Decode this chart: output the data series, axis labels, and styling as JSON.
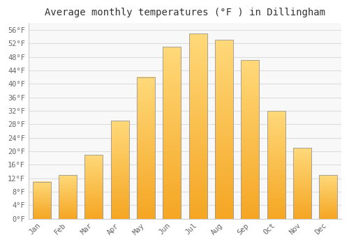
{
  "title": "Average monthly temperatures (°F ) in Dillingham",
  "months": [
    "Jan",
    "Feb",
    "Mar",
    "Apr",
    "May",
    "Jun",
    "Jul",
    "Aug",
    "Sep",
    "Oct",
    "Nov",
    "Dec"
  ],
  "values": [
    11,
    13,
    19,
    29,
    42,
    51,
    55,
    53,
    47,
    32,
    21,
    13
  ],
  "bar_color_bottom": "#F5A623",
  "bar_color_top": "#FFD97A",
  "bar_edge_color": "#999999",
  "ylim": [
    0,
    58
  ],
  "yticks": [
    0,
    4,
    8,
    12,
    16,
    20,
    24,
    28,
    32,
    36,
    40,
    44,
    48,
    52,
    56
  ],
  "ytick_labels": [
    "0°F",
    "4°F",
    "8°F",
    "12°F",
    "16°F",
    "20°F",
    "24°F",
    "28°F",
    "32°F",
    "36°F",
    "40°F",
    "44°F",
    "48°F",
    "52°F",
    "56°F"
  ],
  "background_color": "#ffffff",
  "plot_bg_color": "#f8f8f8",
  "grid_color": "#dddddd",
  "title_fontsize": 10,
  "tick_fontsize": 7.5,
  "bar_width": 0.7
}
